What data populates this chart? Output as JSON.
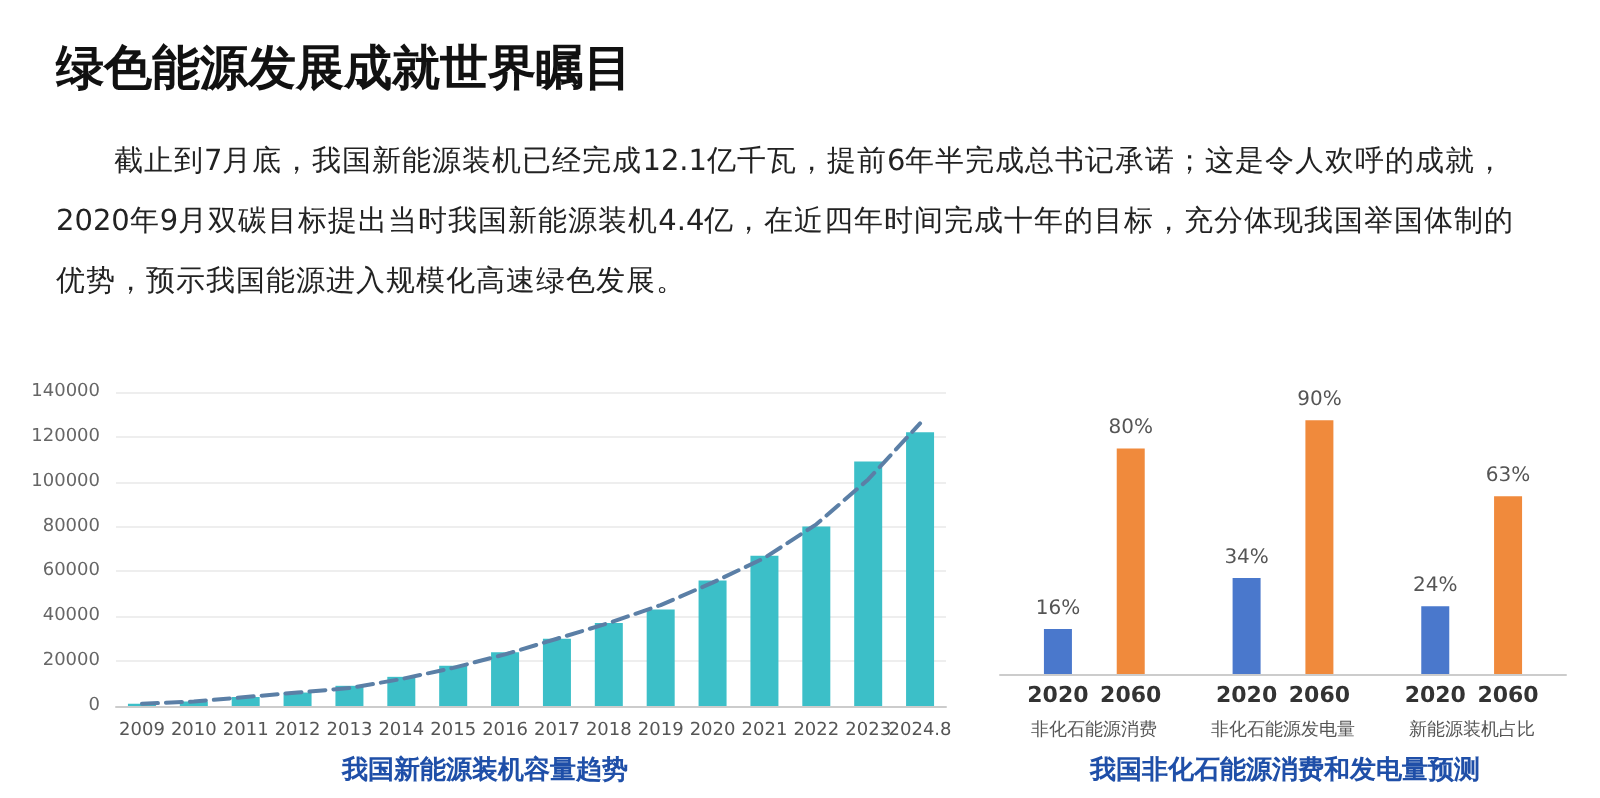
{
  "chart_data": [
    {
      "type": "other",
      "title": "绿色能源发展成就世界瞩目",
      "annotations": [
        "截止到7月底，我国新能源装机已经完成12.1亿千瓦，提前6年半完成总书记承诺；这是令人欢呼的成就，2020年9月双碳目标提出当时我国新能源装机4.4亿，在近四年时间完成十年的目标，充分体现我国举国体制的优势，预示我国能源进入规模化高速绿色发展。"
      ]
    },
    {
      "type": "bar",
      "title": "我国新能源装机容量趋势",
      "categories": [
        "2009",
        "2010",
        "2011",
        "2012",
        "2013",
        "2014",
        "2015",
        "2016",
        "2017",
        "2018",
        "2019",
        "2020",
        "2021",
        "2022",
        "2023",
        "2024.8"
      ],
      "series": [
        {
          "color": "#3cbfc8",
          "values": [
            1000,
            2000,
            4000,
            6000,
            9000,
            13000,
            18000,
            24000,
            30000,
            37000,
            43000,
            56000,
            67000,
            80000,
            109000,
            122000
          ]
        },
        {
          "type": "line",
          "color": "#5b7fa6",
          "line_style": "dashed",
          "marker": "none",
          "values": [
            1000,
            2000,
            4000,
            6000,
            8000,
            12000,
            17000,
            23000,
            30000,
            37000,
            45000,
            55000,
            66000,
            81000,
            101000,
            126000
          ]
        }
      ],
      "ylim": [
        0,
        140000
      ],
      "yticks": [
        0,
        20000,
        40000,
        60000,
        80000,
        100000,
        120000,
        140000
      ],
      "grid": "y"
    },
    {
      "type": "bar",
      "title": "我国非化石能源消费和发电量预测",
      "categories": [
        "非化石能源消费",
        "非化石能源发电量",
        "新能源装机占比"
      ],
      "series": [
        {
          "name": "2020",
          "color": "#4a78cc",
          "values": [
            16,
            34,
            24
          ],
          "value_labels": [
            "16%",
            "34%",
            "24%"
          ]
        },
        {
          "name": "2060",
          "color": "#f08a3c",
          "values": [
            80,
            90,
            63
          ],
          "value_labels": [
            "80%",
            "90%",
            "63%"
          ]
        }
      ],
      "tick_labels": "x"
    }
  ]
}
